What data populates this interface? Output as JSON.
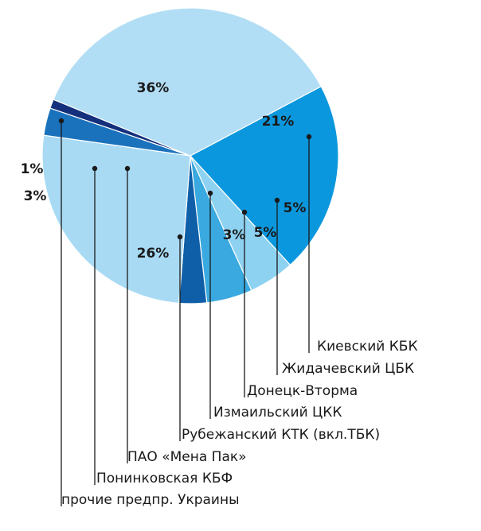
{
  "chart_data": {
    "type": "pie",
    "title": "",
    "unit": "%",
    "start_angle_deg": 62,
    "direction": "clockwise",
    "slices": [
      {
        "label": "Киевский КБК",
        "value": 21,
        "pct_label": "21%",
        "color": "#0b97dd"
      },
      {
        "label": "Жидачевский ЦБК",
        "value": 5,
        "pct_label": "5%",
        "color": "#8ed2f2"
      },
      {
        "label": "Донецк-Вторма",
        "value": 5,
        "pct_label": "5%",
        "color": "#3aa9e0"
      },
      {
        "label": "Измаильский ЦКК",
        "value": 3,
        "pct_label": "3%",
        "color": "#0f5fa8"
      },
      {
        "label": "Рубежанский КТК (вкл.ТБК)",
        "value": 26,
        "pct_label": "26%",
        "color": "#a8daf4"
      },
      {
        "label": "ПАО «Мена Пак»",
        "value": 3,
        "pct_label": "3%",
        "color": "#1b72bc"
      },
      {
        "label": "Понинковская КБФ",
        "value": 1,
        "pct_label": "1%",
        "color": "#142f7c"
      },
      {
        "label": "прочие предпр. Украины",
        "value": 36,
        "pct_label": "36%",
        "color": "#b2def5"
      }
    ]
  }
}
